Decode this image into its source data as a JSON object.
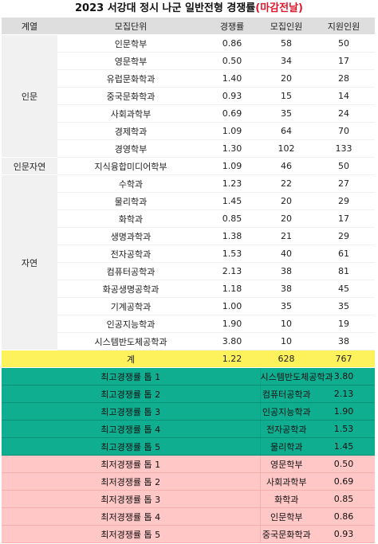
{
  "title": {
    "main": "2023 서강대 정시 나군 일반전형 경쟁률",
    "highlight": "(마감전날)"
  },
  "headers": [
    "계열",
    "모집단위",
    "경쟁률",
    "모집인원",
    "지원인원"
  ],
  "groups": [
    {
      "category": "인문",
      "rows": [
        [
          "인문학부",
          "0.86",
          "58",
          "50"
        ],
        [
          "영문학부",
          "0.50",
          "34",
          "17"
        ],
        [
          "유럽문화학과",
          "1.40",
          "20",
          "28"
        ],
        [
          "중국문화학과",
          "0.93",
          "15",
          "14"
        ],
        [
          "사회과학부",
          "0.69",
          "35",
          "24"
        ],
        [
          "경제학과",
          "1.09",
          "64",
          "70"
        ],
        [
          "경영학부",
          "1.30",
          "102",
          "133"
        ]
      ]
    },
    {
      "category": "인문자연",
      "rows": [
        [
          "지식융합미디어학부",
          "1.09",
          "46",
          "50"
        ]
      ]
    },
    {
      "category": "자연",
      "rows": [
        [
          "수학과",
          "1.23",
          "22",
          "27"
        ],
        [
          "물리학과",
          "1.45",
          "20",
          "29"
        ],
        [
          "화학과",
          "0.85",
          "20",
          "17"
        ],
        [
          "생명과학과",
          "1.38",
          "21",
          "29"
        ],
        [
          "전자공학과",
          "1.53",
          "40",
          "61"
        ],
        [
          "컴퓨터공학과",
          "2.13",
          "38",
          "81"
        ],
        [
          "화공생명공학과",
          "1.18",
          "38",
          "45"
        ],
        [
          "기계공학과",
          "1.00",
          "35",
          "35"
        ],
        [
          "인공지능학과",
          "1.90",
          "10",
          "19"
        ],
        [
          "시스템반도체공학과",
          "3.80",
          "10",
          "38"
        ]
      ]
    }
  ],
  "total": [
    "계",
    "1.22",
    "628",
    "767"
  ],
  "top": [
    [
      "최고경쟁률 톱 1",
      "시스템반도체공학과",
      "3.80"
    ],
    [
      "최고경쟁률 톱 2",
      "컴퓨터공학과",
      "2.13"
    ],
    [
      "최고경쟁률 톱 3",
      "인공지능학과",
      "1.90"
    ],
    [
      "최고경쟁률 톱 4",
      "전자공학과",
      "1.53"
    ],
    [
      "최고경쟁률 톱 5",
      "물리학과",
      "1.45"
    ]
  ],
  "low": [
    [
      "최저경쟁률 톱 1",
      "영문학부",
      "0.50"
    ],
    [
      "최저경쟁률 톱 2",
      "사회과학부",
      "0.69"
    ],
    [
      "최저경쟁률 톱 3",
      "화학과",
      "0.85"
    ],
    [
      "최저경쟁률 톱 4",
      "인문학부",
      "0.86"
    ],
    [
      "최저경쟁률 톱 5",
      "중국문화학과",
      "0.93"
    ]
  ],
  "colors": {
    "title_highlight": "#e0162b",
    "header_bg": "#dedede",
    "total_bg": "#fdf25c",
    "top_bg": "#0fae91",
    "low_bg": "#ffc7c6"
  }
}
